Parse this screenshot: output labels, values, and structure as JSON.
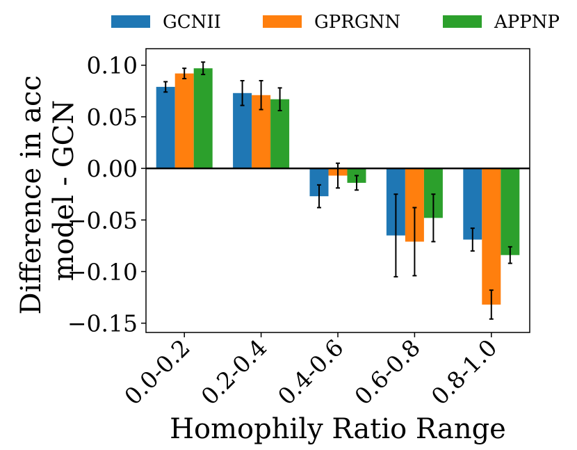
{
  "chart_data": {
    "type": "bar",
    "title": "",
    "xlabel": "Homophily Ratio Range",
    "ylabel_lines": [
      "Difference in acc",
      "model - GCN"
    ],
    "categories": [
      "0.0-0.2",
      "0.2-0.4",
      "0.4-0.6",
      "0.6-0.8",
      "0.8-1.0"
    ],
    "series": [
      {
        "name": "GCNII",
        "color": "#1f77b4",
        "values": [
          0.079,
          0.073,
          -0.027,
          -0.065,
          -0.069
        ],
        "errors": [
          0.005,
          0.012,
          0.011,
          0.04,
          0.011
        ]
      },
      {
        "name": "GPRGNN",
        "color": "#ff7f0e",
        "values": [
          0.092,
          0.071,
          -0.007,
          -0.071,
          -0.132
        ],
        "errors": [
          0.005,
          0.014,
          0.012,
          0.033,
          0.014
        ]
      },
      {
        "name": "APPNP",
        "color": "#2ca02c",
        "values": [
          0.097,
          0.067,
          -0.014,
          -0.048,
          -0.084
        ],
        "errors": [
          0.006,
          0.011,
          0.007,
          0.023,
          0.008
        ]
      }
    ],
    "ylim": [
      -0.159,
      0.116
    ],
    "yticks": [
      0.1,
      0.05,
      0.0,
      -0.05,
      -0.1,
      -0.15
    ],
    "ytick_labels": [
      "0.10",
      "0.05",
      "0.00",
      "−0.05",
      "−0.10",
      "−0.15"
    ],
    "zero_line": true,
    "grid": false,
    "legend_position": "top"
  }
}
